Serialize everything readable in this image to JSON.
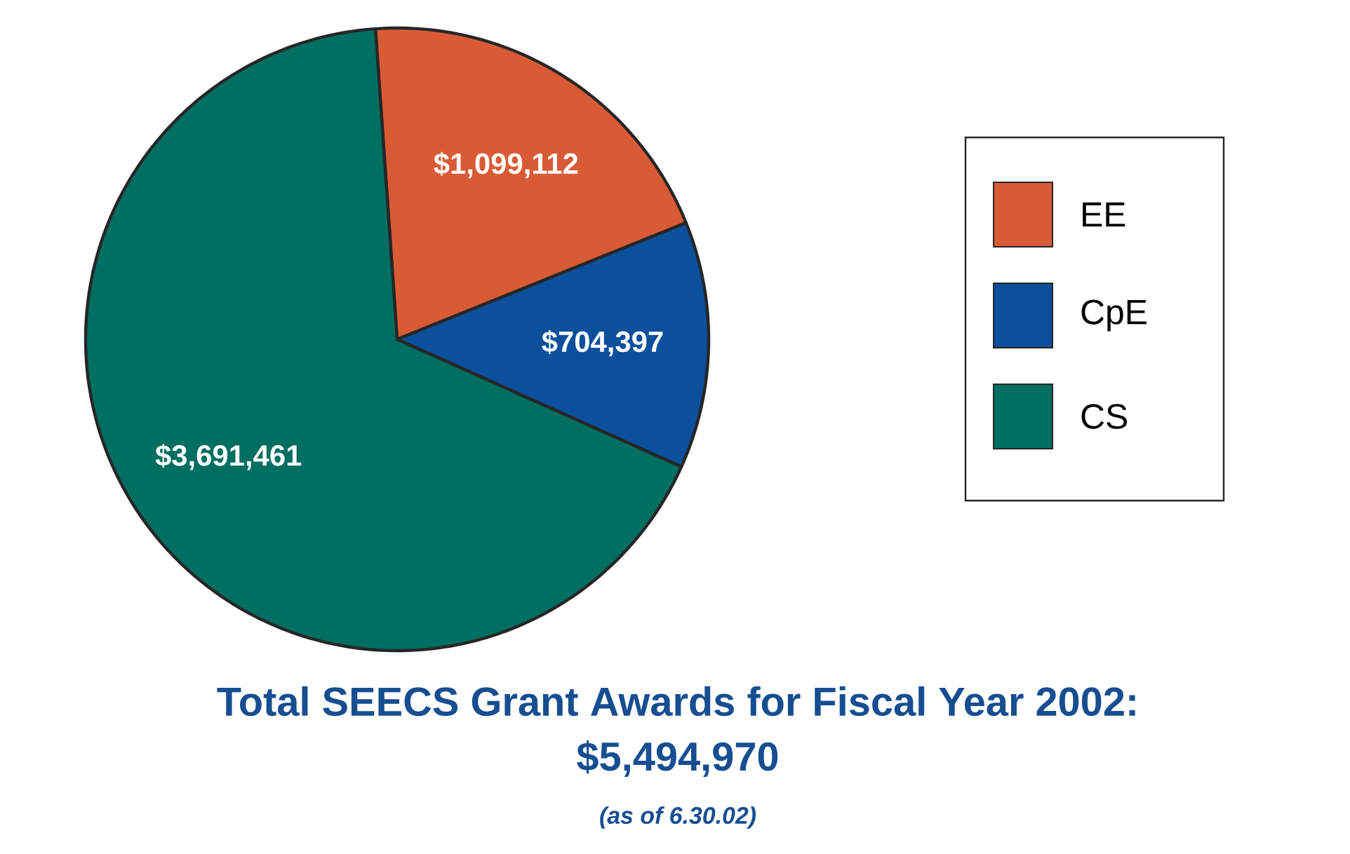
{
  "chart_data": {
    "type": "pie",
    "title": "Total SEECS Grant Awards for Fiscal Year 2002:",
    "subtitle": "$5,494,970",
    "annotations": [
      "(as of 6.30.02)"
    ],
    "categories": [
      "EE",
      "CpE",
      "CS"
    ],
    "values": [
      1099112,
      704397,
      3691461
    ],
    "value_labels": [
      "$1,099,112",
      "$704,397",
      "$3,691,461"
    ],
    "colors": [
      "#d95b35",
      "#0b509c",
      "#006f62"
    ],
    "legend": "right"
  }
}
